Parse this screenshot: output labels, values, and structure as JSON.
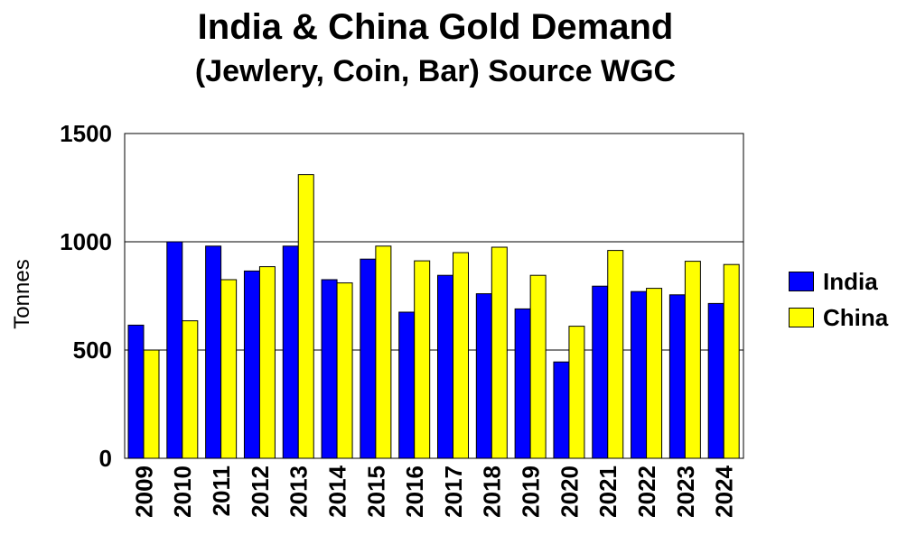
{
  "chart_data": {
    "type": "bar",
    "title": "India & China Gold Demand",
    "subtitle": "(Jewlery, Coin, Bar) Source WGC",
    "ylabel": "Tonnes",
    "xlabel": "",
    "ylim": [
      0,
      1500
    ],
    "yticks": [
      0,
      500,
      1000,
      1500
    ],
    "grid": true,
    "legend_position": "right",
    "categories": [
      "2009",
      "2010",
      "2011",
      "2012",
      "2013",
      "2014",
      "2015",
      "2016",
      "2017",
      "2018",
      "2019",
      "2020",
      "2021",
      "2022",
      "2023",
      "2024"
    ],
    "series": [
      {
        "name": "India",
        "color": "#0000ff",
        "values": [
          615,
          1000,
          980,
          865,
          980,
          825,
          920,
          675,
          845,
          760,
          690,
          445,
          795,
          770,
          755,
          715
        ]
      },
      {
        "name": "China",
        "color": "#ffff00",
        "values": [
          500,
          635,
          825,
          885,
          1310,
          810,
          980,
          912,
          950,
          975,
          845,
          610,
          960,
          785,
          910,
          895
        ]
      }
    ]
  }
}
